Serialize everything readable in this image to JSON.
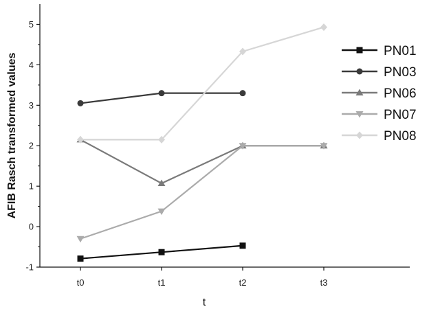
{
  "chart_data": {
    "type": "line",
    "categories": [
      "t0",
      "t1",
      "t2",
      "t3"
    ],
    "xlabel": "t",
    "ylabel": "AFIB Rasch transformed values",
    "ylim": [
      -1,
      5.5
    ],
    "yticks": [
      -1,
      0,
      1,
      2,
      3,
      4,
      5
    ],
    "grid": false,
    "legend_position": "right",
    "series": [
      {
        "name": "PN01",
        "values": [
          -0.79,
          -0.63,
          -0.47,
          null
        ],
        "color": "#111111",
        "marker": "square"
      },
      {
        "name": "PN03",
        "values": [
          3.05,
          3.3,
          3.3,
          null
        ],
        "color": "#3a3a3a",
        "marker": "circle"
      },
      {
        "name": "PN06",
        "values": [
          2.15,
          1.07,
          2.0,
          2.0
        ],
        "color": "#7a7a7a",
        "marker": "triangle-up"
      },
      {
        "name": "PN07",
        "values": [
          -0.3,
          0.38,
          2.0,
          2.0
        ],
        "color": "#ababab",
        "marker": "triangle-down"
      },
      {
        "name": "PN08",
        "values": [
          2.15,
          2.15,
          4.33,
          4.93
        ],
        "color": "#d6d6d6",
        "marker": "diamond"
      }
    ]
  }
}
